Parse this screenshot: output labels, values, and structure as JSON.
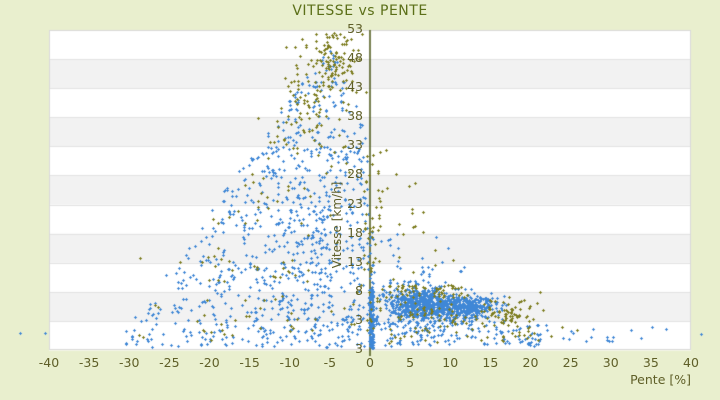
{
  "chart_data": {
    "type": "scatter",
    "title": "VITESSE vs PENTE",
    "xlabel": "Pente [%]",
    "ylabel": "Vitesse [km/h]",
    "xlim": [
      -40,
      40
    ],
    "ylim_render": [
      3,
      53
    ],
    "x_ticks": [
      -40,
      -35,
      -30,
      -25,
      -20,
      -15,
      -10,
      -5,
      0,
      5,
      10,
      15,
      20,
      25,
      30,
      35,
      40
    ],
    "y_tick_labels": [
      "53",
      "48",
      "43",
      "38",
      "33",
      "28",
      "23",
      "18",
      "13",
      "8",
      "3",
      "3"
    ],
    "background": "#e9efce",
    "title_color": "#5c7019",
    "label_color": "#5f5f28",
    "axis_line_color": "#4a5616",
    "plot_bands": {
      "colors": [
        "#ffffff",
        "#f2f2f2"
      ],
      "count": 11,
      "border": "#d9d9d9",
      "line": "#e2e2e2"
    },
    "marker": {
      "shape": "plus-icon",
      "size": 3
    },
    "seed": 1337,
    "envelope": {
      "apex_p": -5,
      "apex_v": 51,
      "slope_left": 1.75,
      "slope_right": 3.0
    },
    "series": [
      {
        "name": "blue-series",
        "color": "#3f87d6",
        "clusters": [
          {
            "t": "cols",
            "p": [
              -31,
              -28
            ],
            "vlo": 3.4,
            "n": 12
          },
          {
            "t": "cols",
            "p": [
              -28,
              -25
            ],
            "vlo": 3.4,
            "n": 22
          },
          {
            "t": "cols",
            "p": [
              -25,
              -22
            ],
            "vlo": 3.4,
            "n": 34
          },
          {
            "t": "cols",
            "p": [
              -22,
              -19
            ],
            "vlo": 3.4,
            "n": 48
          },
          {
            "t": "cols",
            "p": [
              -19,
              -16
            ],
            "vlo": 3.4,
            "n": 66
          },
          {
            "t": "cols",
            "p": [
              -16,
              -13
            ],
            "vlo": 3.4,
            "n": 90
          },
          {
            "t": "cols",
            "p": [
              -13,
              -10
            ],
            "vlo": 3.5,
            "n": 120
          },
          {
            "t": "cols",
            "p": [
              -10,
              -7
            ],
            "vlo": 3.5,
            "n": 160
          },
          {
            "t": "cols",
            "p": [
              -7,
              -4
            ],
            "vlo": 3.5,
            "n": 195
          },
          {
            "t": "cols",
            "p": [
              -4,
              -0.2
            ],
            "vlo": 3.5,
            "n": 160
          },
          {
            "t": "uni",
            "p": [
              -0.15,
              0.45
            ],
            "v": [
              3.3,
              12.6
            ],
            "n": 140
          },
          {
            "t": "uni",
            "p": [
              -0.1,
              0.5
            ],
            "v": [
              12,
              22
            ],
            "n": 16
          },
          {
            "t": "g",
            "c": [
              5.5,
              10.2
            ],
            "s": [
              2.2,
              1.4
            ],
            "n": 420,
            "clip": [
              0.8,
              99,
              5,
              14.2
            ]
          },
          {
            "t": "g",
            "c": [
              9,
              9.9
            ],
            "s": [
              2.6,
              1.15
            ],
            "n": 430,
            "clip": [
              0.8,
              16.5,
              5,
              13.6
            ]
          },
          {
            "t": "g",
            "c": [
              12.5,
              9.7
            ],
            "s": [
              1.8,
              0.85
            ],
            "n": 160,
            "clip": [
              1,
              17,
              6,
              12.2
            ]
          },
          {
            "t": "uni",
            "p": [
              0.3,
              16
            ],
            "v": [
              3.6,
              8.2
            ],
            "n": 120
          },
          {
            "t": "uni",
            "p": [
              16,
              22
            ],
            "v": [
              3.6,
              7
            ],
            "n": 40
          },
          {
            "t": "uni",
            "p": [
              1,
              13
            ],
            "v": [
              13.5,
              16.5
            ],
            "n": 18
          },
          {
            "t": "uni",
            "p": [
              1,
              10
            ],
            "v": [
              16.5,
              22
            ],
            "n": 12
          },
          {
            "t": "uni",
            "p": [
              22,
              32
            ],
            "v": [
              4,
              6.5
            ],
            "n": 10
          },
          {
            "t": "pts",
            "pts": [
              [
                -43.6,
                5.7
              ],
              [
                -40.5,
                5.7
              ],
              [
                36.9,
                6.3
              ],
              [
                41.2,
                5.5
              ],
              [
                35.1,
                6.6
              ],
              [
                32.5,
                6.1
              ],
              [
                30.2,
                4.4
              ],
              [
                27.6,
                5.1
              ],
              [
                25.1,
                6.0
              ],
              [
                33.8,
                4.9
              ]
            ]
          }
        ]
      },
      {
        "name": "olive-series",
        "color": "#7d7d1f",
        "clusters": [
          {
            "t": "g",
            "c": [
              -5.2,
              47
            ],
            "s": [
              2.0,
              2.8
            ],
            "n": 120,
            "clip": [
              -10.5,
              -0.5,
              38,
              52.3
            ]
          },
          {
            "t": "g",
            "c": [
              -9,
              40
            ],
            "s": [
              2.0,
              3.0
            ],
            "n": 48,
            "clip": [
              -14,
              -4,
              30,
              47
            ]
          },
          {
            "t": "envu",
            "p": [
              -21,
              -0.5
            ],
            "vlo": 5,
            "f": 0.95,
            "n": 110
          },
          {
            "t": "uni",
            "p": [
              -0.8,
              1.3
            ],
            "v": [
              6,
              34
            ],
            "n": 48
          },
          {
            "t": "uni",
            "p": [
              1,
              9
            ],
            "v": [
              12,
              26
            ],
            "n": 12
          },
          {
            "t": "uni",
            "p": [
              1,
              13
            ],
            "v": [
              11.2,
              13.2
            ],
            "n": 55
          },
          {
            "t": "g",
            "c": [
              9,
              8.8
            ],
            "s": [
              3.0,
              1.1
            ],
            "n": 45,
            "clip": [
              3,
              15.5,
              6,
              11.5
            ]
          },
          {
            "t": "g",
            "c": [
              17.3,
              9.0
            ],
            "s": [
              1.7,
              1.3
            ],
            "n": 72,
            "clip": [
              13.8,
              21.5,
              5,
              12
            ]
          },
          {
            "t": "uni",
            "p": [
              2,
              21
            ],
            "v": [
              4,
              6.8
            ],
            "n": 38
          },
          {
            "t": "uni",
            "p": [
              -7,
              -1
            ],
            "v": [
              48,
              52.5
            ],
            "n": 14
          },
          {
            "t": "pts",
            "pts": [
              [
                -28.7,
                17.4
              ],
              [
                -23.7,
                16.8
              ],
              [
                -26.8,
                10.0
              ],
              [
                -26.4,
                9.7
              ],
              [
                -28.8,
                5.3
              ],
              [
                -28.3,
                5.0
              ],
              [
                -21.5,
                7.5
              ],
              [
                -19.8,
                4.6
              ],
              [
                1.5,
                27.9
              ],
              [
                2.1,
                28.3
              ],
              [
                4.9,
                28.6
              ],
              [
                5.6,
                29.1
              ],
              [
                1.3,
                33.9
              ],
              [
                2.0,
                34.2
              ],
              [
                6.6,
                24.6
              ],
              [
                4.1,
                21.2
              ],
              [
                8.1,
                18.6
              ],
              [
                5.3,
                15.2
              ],
              [
                3.2,
                30.5
              ],
              [
                10.4,
                17.0
              ],
              [
                23.9,
                6.6
              ],
              [
                22.5,
                5.2
              ],
              [
                25.8,
                6.1
              ],
              [
                20.9,
                4.6
              ]
            ]
          }
        ]
      }
    ]
  }
}
